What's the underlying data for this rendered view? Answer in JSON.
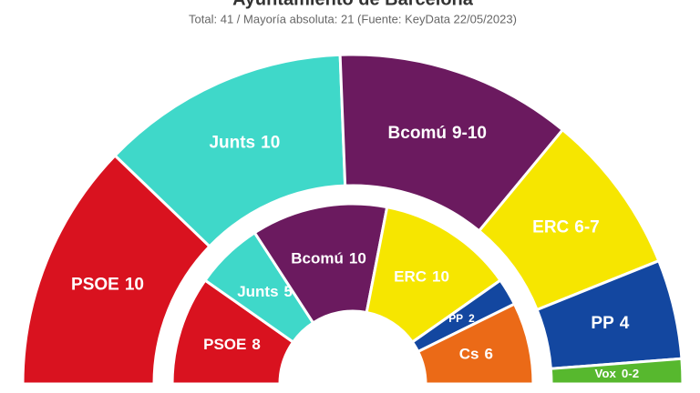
{
  "chart_data": {
    "type": "parliament",
    "title": "Ayuntamiento de Barcelona",
    "subtitle": "Total: 41 / Mayoría absoluta: 21 (Fuente: KeyData 22/05/2023)",
    "outer": {
      "categories": [
        "PSOE",
        "Junts",
        "Bcomú",
        "ERC",
        "PP",
        "Vox"
      ],
      "min": [
        10,
        10,
        9,
        6,
        4,
        0
      ],
      "max": [
        10,
        10,
        10,
        7,
        4,
        2
      ],
      "value_labels": [
        "10",
        "10",
        "9-10",
        "6-7",
        "4",
        "0-2"
      ],
      "colors": [
        "#d9121f",
        "#3fd8c9",
        "#6b1a5f",
        "#f6e600",
        "#1347a0",
        "#57b82e"
      ]
    },
    "inner": {
      "categories": [
        "PSOE",
        "Junts",
        "Bcomú",
        "ERC",
        "PP",
        "Cs"
      ],
      "values": [
        8,
        5,
        10,
        10,
        2,
        6
      ],
      "colors": [
        "#d9121f",
        "#3fd8c9",
        "#6b1a5f",
        "#f6e600",
        "#1347a0",
        "#eb6a17"
      ]
    }
  }
}
